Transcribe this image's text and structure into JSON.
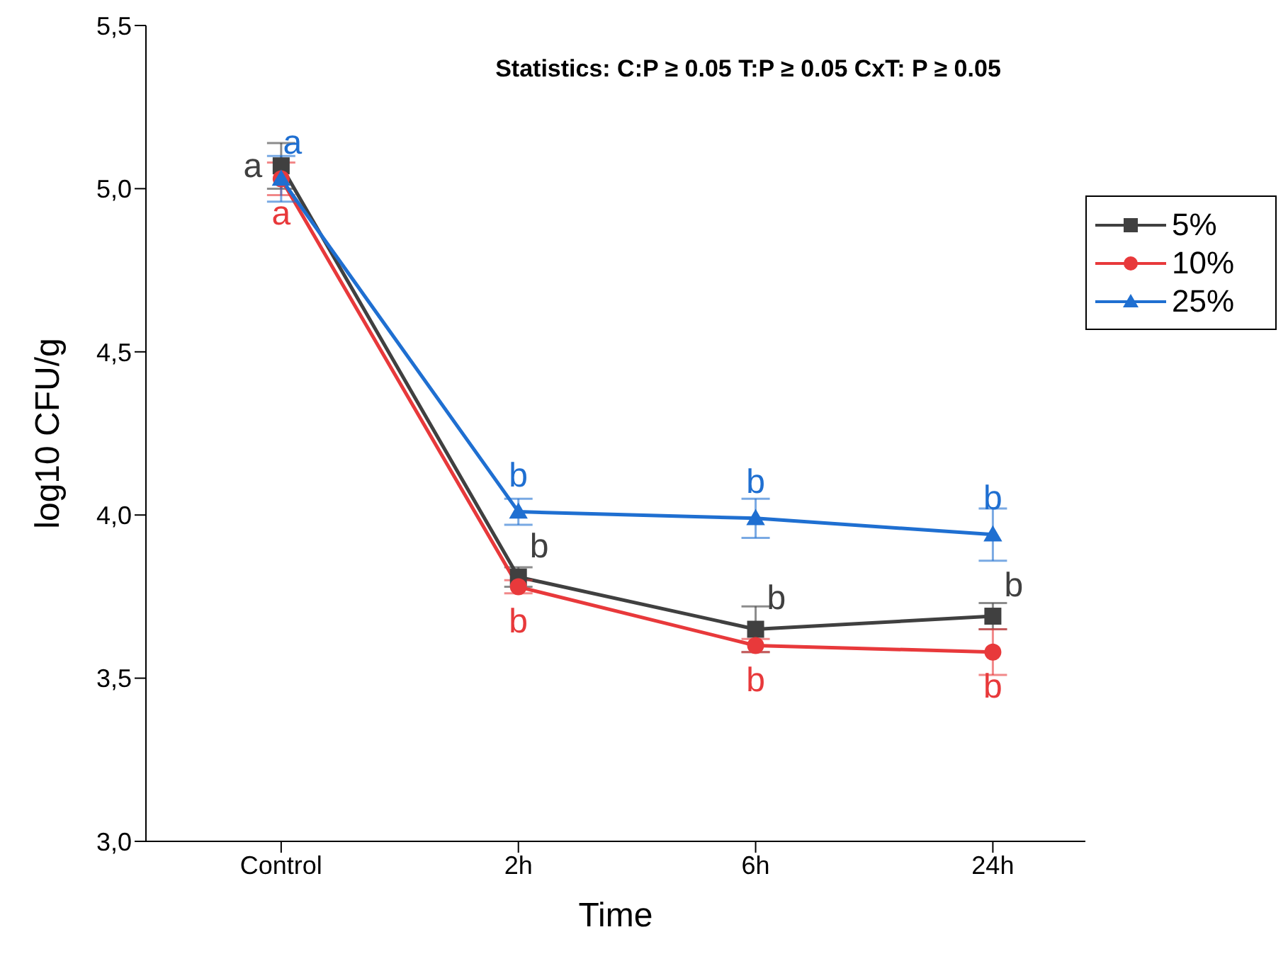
{
  "chart_data": {
    "type": "line",
    "xlabel": "Time",
    "ylabel": "log10 CFU/g",
    "categories": [
      "Control",
      "2h",
      "6h",
      "24h"
    ],
    "ylim": [
      3,
      5.5
    ],
    "yticks": [
      {
        "value": 3,
        "label": "3,0"
      },
      {
        "value": 3.5,
        "label": "3,5"
      },
      {
        "value": 4,
        "label": "4,0"
      },
      {
        "value": 4.5,
        "label": "4,5"
      },
      {
        "value": 5,
        "label": "5,0"
      },
      {
        "value": 5.5,
        "label": "5,5"
      }
    ],
    "legend": "top right",
    "line_style": "solid",
    "annotations": [
      "Statistics: C:P ≥ 0.05 T:P ≥ 0.05 CxT: P ≥ 0.05"
    ],
    "series": [
      {
        "name": "5%",
        "color": "#404040",
        "marker": "square",
        "values": [
          5.07,
          3.81,
          3.65,
          3.69
        ],
        "errors": [
          0.07,
          0.03,
          0.07,
          0.04
        ],
        "value_labels": [
          "a",
          "b",
          "b",
          "b"
        ]
      },
      {
        "name": "10%",
        "color": "#e8393b",
        "marker": "circle",
        "values": [
          5.03,
          3.78,
          3.6,
          3.58
        ],
        "errors": [
          0.05,
          0.02,
          0.02,
          0.07
        ],
        "value_labels": [
          "a",
          "b",
          "b",
          "b"
        ]
      },
      {
        "name": "25%",
        "color": "#1f6fd1",
        "marker": "triangle",
        "values": [
          5.03,
          4.01,
          3.99,
          3.94
        ],
        "errors": [
          0.07,
          0.04,
          0.06,
          0.08
        ],
        "value_labels": [
          "a",
          "b",
          "b",
          "b"
        ]
      }
    ]
  }
}
